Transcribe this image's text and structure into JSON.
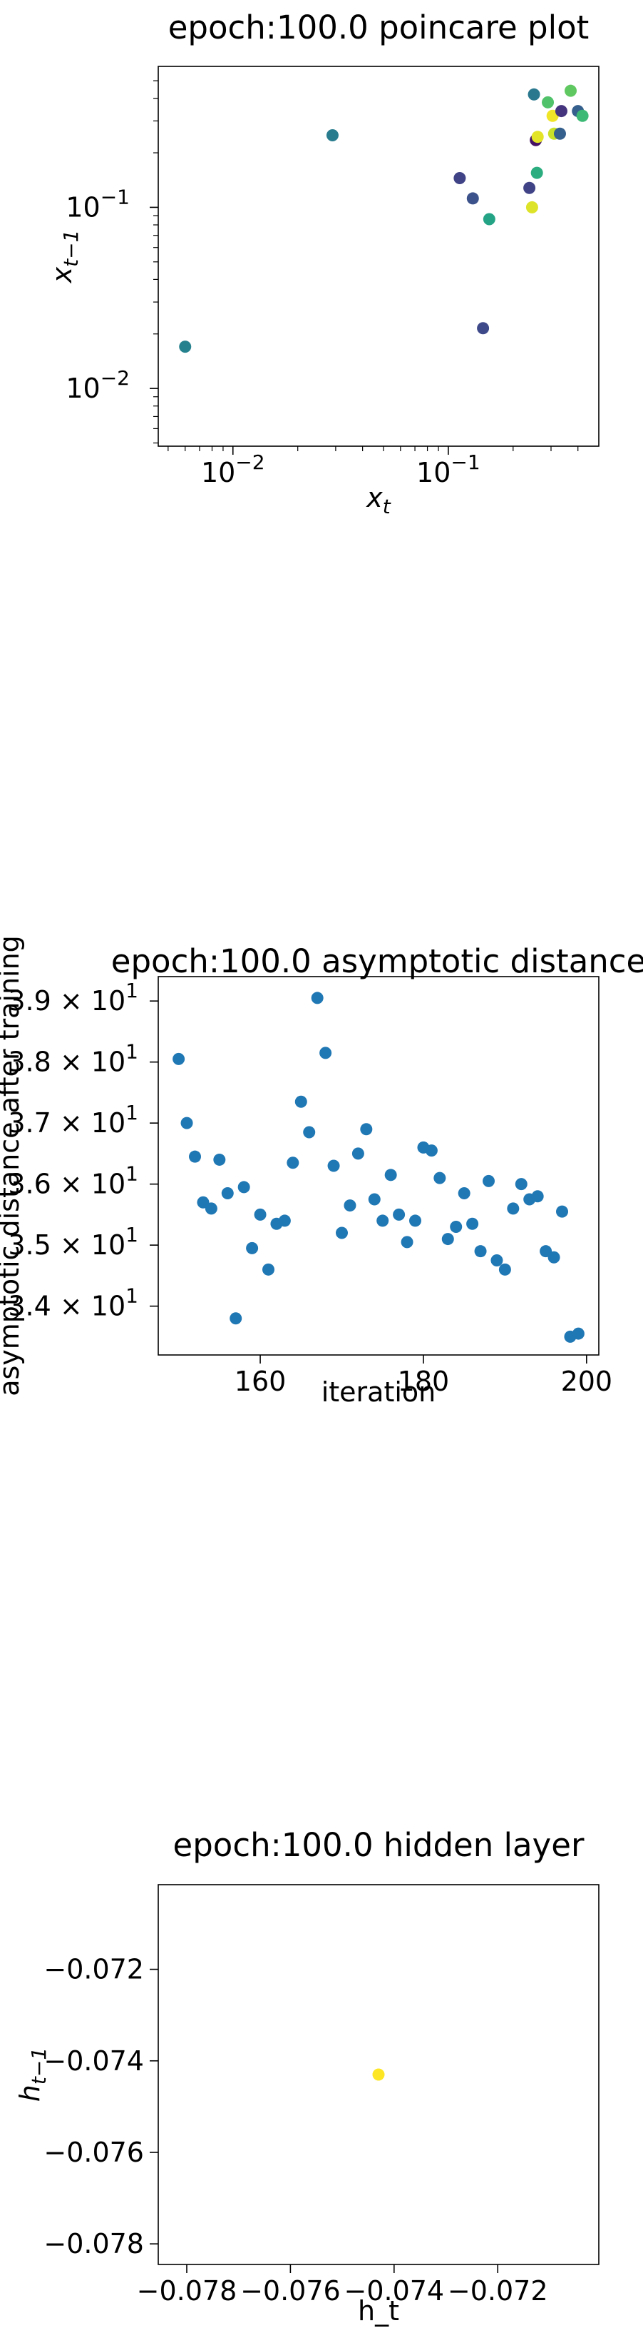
{
  "charts": [
    {
      "type": "scatter",
      "title": "epoch:100.0 poincare plot",
      "xlabel": "x_t",
      "ylabel": "x_t-1",
      "xscale": "log",
      "yscale": "log",
      "xlim": [
        0.0045,
        0.5
      ],
      "ylim": [
        0.0048,
        0.6
      ],
      "x_ticks": [
        {
          "value": 0.01,
          "label": "10-2"
        },
        {
          "value": 0.1,
          "label": "10-1"
        }
      ],
      "y_ticks": [
        {
          "value": 0.01,
          "label": "10-2"
        },
        {
          "value": 0.1,
          "label": "10-1"
        }
      ],
      "colormap": "viridis",
      "points": [
        {
          "x": 0.006,
          "y": 0.017,
          "c": 0.44
        },
        {
          "x": 0.029,
          "y": 0.25,
          "c": 0.42
        },
        {
          "x": 0.113,
          "y": 0.145,
          "c": 0.2
        },
        {
          "x": 0.13,
          "y": 0.112,
          "c": 0.25
        },
        {
          "x": 0.145,
          "y": 0.0215,
          "c": 0.22
        },
        {
          "x": 0.155,
          "y": 0.086,
          "c": 0.58
        },
        {
          "x": 0.238,
          "y": 0.128,
          "c": 0.2
        },
        {
          "x": 0.245,
          "y": 0.1,
          "c": 0.95
        },
        {
          "x": 0.25,
          "y": 0.42,
          "c": 0.4
        },
        {
          "x": 0.255,
          "y": 0.235,
          "c": 0.05
        },
        {
          "x": 0.258,
          "y": 0.155,
          "c": 0.62
        },
        {
          "x": 0.26,
          "y": 0.245,
          "c": 0.96
        },
        {
          "x": 0.29,
          "y": 0.38,
          "c": 0.72
        },
        {
          "x": 0.305,
          "y": 0.32,
          "c": 0.98
        },
        {
          "x": 0.31,
          "y": 0.255,
          "c": 0.92
        },
        {
          "x": 0.33,
          "y": 0.255,
          "c": 0.3
        },
        {
          "x": 0.335,
          "y": 0.34,
          "c": 0.15
        },
        {
          "x": 0.37,
          "y": 0.44,
          "c": 0.75
        },
        {
          "x": 0.4,
          "y": 0.34,
          "c": 0.3
        },
        {
          "x": 0.42,
          "y": 0.32,
          "c": 0.68
        }
      ]
    },
    {
      "type": "scatter",
      "title": "epoch:100.0 asymptotic distance",
      "xlabel": "iteration",
      "ylabel": "asymptotic distance after training",
      "xlim": [
        147.5,
        201.5
      ],
      "ylim": [
        33.2,
        39.4
      ],
      "x_ticks": [
        {
          "value": 160,
          "label": "160"
        },
        {
          "value": 180,
          "label": "180"
        },
        {
          "value": 200,
          "label": "200"
        }
      ],
      "y_ticks": [
        {
          "value": 34,
          "label": "3.4 × 10",
          "exp": "1"
        },
        {
          "value": 35,
          "label": "3.5 × 10",
          "exp": "1"
        },
        {
          "value": 36,
          "label": "3.6 × 10",
          "exp": "1"
        },
        {
          "value": 37,
          "label": "3.7 × 10",
          "exp": "1"
        },
        {
          "value": 38,
          "label": "3.8 × 10",
          "exp": "1"
        },
        {
          "value": 39,
          "label": "3.9 × 10",
          "exp": "1"
        }
      ],
      "point_color": "#1f77b4",
      "points": [
        {
          "x": 150,
          "y": 38.05
        },
        {
          "x": 151,
          "y": 37.0
        },
        {
          "x": 152,
          "y": 36.45
        },
        {
          "x": 153,
          "y": 35.7
        },
        {
          "x": 154,
          "y": 35.6
        },
        {
          "x": 155,
          "y": 36.4
        },
        {
          "x": 156,
          "y": 35.85
        },
        {
          "x": 157,
          "y": 33.8
        },
        {
          "x": 158,
          "y": 35.95
        },
        {
          "x": 159,
          "y": 34.95
        },
        {
          "x": 160,
          "y": 35.5
        },
        {
          "x": 161,
          "y": 34.6
        },
        {
          "x": 162,
          "y": 35.35
        },
        {
          "x": 163,
          "y": 35.4
        },
        {
          "x": 164,
          "y": 36.35
        },
        {
          "x": 165,
          "y": 37.35
        },
        {
          "x": 166,
          "y": 36.85
        },
        {
          "x": 167,
          "y": 39.05
        },
        {
          "x": 168,
          "y": 38.15
        },
        {
          "x": 169,
          "y": 36.3
        },
        {
          "x": 170,
          "y": 35.2
        },
        {
          "x": 171,
          "y": 35.65
        },
        {
          "x": 172,
          "y": 36.5
        },
        {
          "x": 173,
          "y": 36.9
        },
        {
          "x": 174,
          "y": 35.75
        },
        {
          "x": 175,
          "y": 35.4
        },
        {
          "x": 176,
          "y": 36.15
        },
        {
          "x": 177,
          "y": 35.5
        },
        {
          "x": 178,
          "y": 35.05
        },
        {
          "x": 179,
          "y": 35.4
        },
        {
          "x": 180,
          "y": 36.6
        },
        {
          "x": 181,
          "y": 36.55
        },
        {
          "x": 182,
          "y": 36.1
        },
        {
          "x": 183,
          "y": 35.1
        },
        {
          "x": 184,
          "y": 35.3
        },
        {
          "x": 185,
          "y": 35.85
        },
        {
          "x": 186,
          "y": 35.35
        },
        {
          "x": 187,
          "y": 34.9
        },
        {
          "x": 188,
          "y": 36.05
        },
        {
          "x": 189,
          "y": 34.75
        },
        {
          "x": 190,
          "y": 34.6
        },
        {
          "x": 191,
          "y": 35.6
        },
        {
          "x": 192,
          "y": 36.0
        },
        {
          "x": 193,
          "y": 35.75
        },
        {
          "x": 194,
          "y": 35.8
        },
        {
          "x": 195,
          "y": 34.9
        },
        {
          "x": 196,
          "y": 34.8
        },
        {
          "x": 197,
          "y": 35.55
        },
        {
          "x": 198,
          "y": 33.5
        },
        {
          "x": 199,
          "y": 33.55
        }
      ]
    },
    {
      "type": "scatter",
      "title": "epoch:100.0 hidden layer",
      "xlabel": "h_t",
      "ylabel": "h_t-1",
      "xlim": [
        -0.07855,
        -0.07005
      ],
      "ylim": [
        -0.07845,
        -0.07015
      ],
      "x_ticks": [
        {
          "value": -0.078,
          "label": "−0.078"
        },
        {
          "value": -0.076,
          "label": "−0.076"
        },
        {
          "value": -0.074,
          "label": "−0.074"
        },
        {
          "value": -0.072,
          "label": "−0.072"
        }
      ],
      "y_ticks": [
        {
          "value": -0.078,
          "label": "−0.078"
        },
        {
          "value": -0.076,
          "label": "−0.076"
        },
        {
          "value": -0.074,
          "label": "−0.074"
        },
        {
          "value": -0.072,
          "label": "−0.072"
        }
      ],
      "point_color": "#fde725",
      "points": [
        {
          "x": -0.0743,
          "y": -0.0743
        }
      ]
    }
  ]
}
